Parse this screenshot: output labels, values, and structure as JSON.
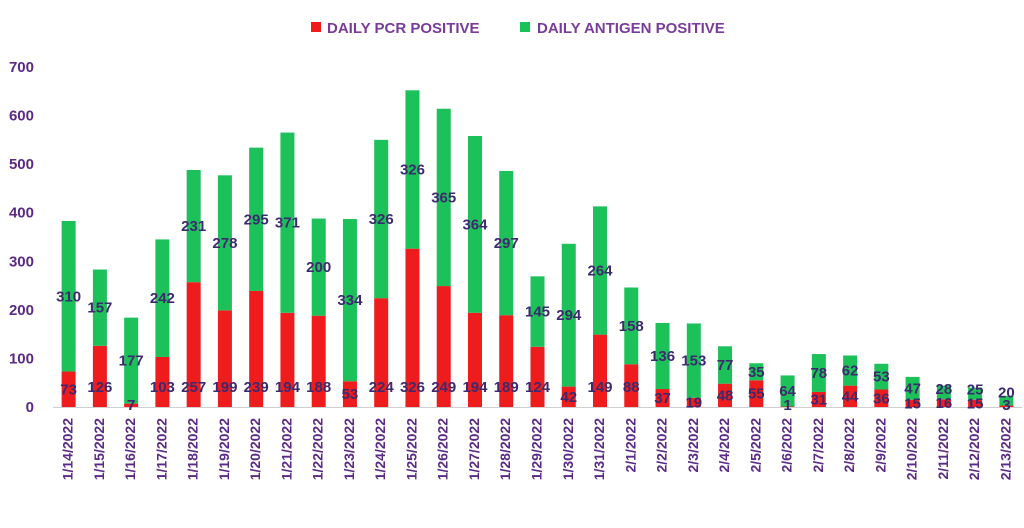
{
  "chart_data": {
    "type": "bar",
    "stacked": true,
    "categories": [
      "1/14/2022",
      "1/15/2022",
      "1/16/2022",
      "1/17/2022",
      "1/18/2022",
      "1/19/2022",
      "1/20/2022",
      "1/21/2022",
      "1/22/2022",
      "1/23/2022",
      "1/24/2022",
      "1/25/2022",
      "1/26/2022",
      "1/27/2022",
      "1/28/2022",
      "1/29/2022",
      "1/30/2022",
      "1/31/2022",
      "2/1/2022",
      "2/2/2022",
      "2/3/2022",
      "2/4/2022",
      "2/5/2022",
      "2/6/2022",
      "2/7/2022",
      "2/8/2022",
      "2/9/2022",
      "2/10/2022",
      "2/11/2022",
      "2/12/2022",
      "2/13/2022"
    ],
    "series": [
      {
        "name": "DAILY PCR POSITIVE",
        "color": "#ee1c1c",
        "values": [
          73,
          126,
          7,
          103,
          257,
          199,
          239,
          194,
          188,
          53,
          224,
          326,
          249,
          194,
          189,
          124,
          42,
          149,
          88,
          37,
          19,
          48,
          55,
          1,
          31,
          44,
          36,
          15,
          16,
          15,
          3
        ]
      },
      {
        "name": "DAILY ANTIGEN POSITIVE",
        "color": "#1cc15a",
        "values": [
          310,
          157,
          177,
          242,
          231,
          278,
          295,
          371,
          200,
          334,
          326,
          326,
          365,
          364,
          297,
          145,
          294,
          264,
          158,
          136,
          153,
          77,
          35,
          64,
          78,
          62,
          53,
          47,
          28,
          25,
          20
        ]
      }
    ],
    "ylim": [
      0,
      700
    ],
    "yticks": [
      "0",
      "100",
      "200",
      "300",
      "400",
      "500",
      "600",
      "700"
    ],
    "grid": false,
    "legend_position": "top-center",
    "title": "",
    "xlabel": "",
    "ylabel": ""
  }
}
